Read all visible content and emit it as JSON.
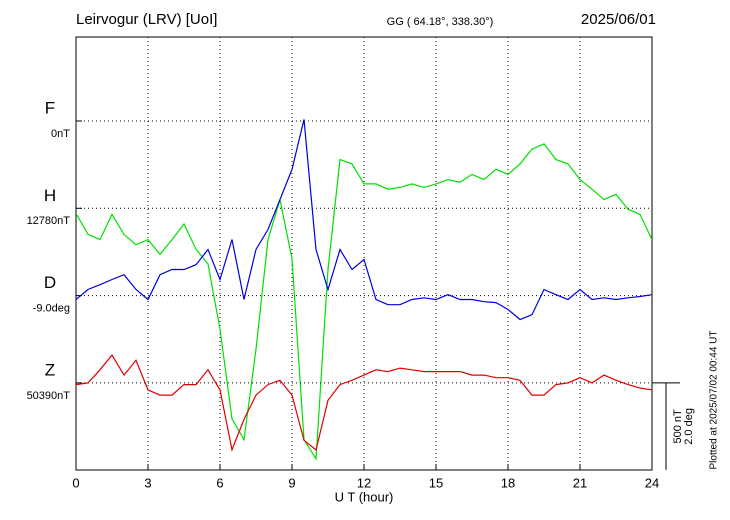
{
  "chart_data": {
    "type": "line",
    "title": "Leirvogur (LRV)  [UoI]",
    "subtitle": "GG ( 64.18°, 338.30°)",
    "date": "2025/06/01",
    "x_label": "U T (hour)",
    "footnote": "Plotted at 2025/07/02 00:44 UT",
    "xlim": [
      0,
      24
    ],
    "xticks": [
      0,
      3,
      6,
      9,
      12,
      15,
      18,
      21,
      24
    ],
    "grid": true,
    "scale": [
      {
        "value": 500,
        "label": "500 nT"
      },
      {
        "value": 2.0,
        "label": "2.0 deg"
      }
    ],
    "x": [
      0,
      0.5,
      1,
      1.5,
      2,
      2.5,
      3,
      3.5,
      4,
      4.5,
      5,
      5.5,
      6,
      6.5,
      7,
      7.5,
      8,
      8.5,
      9,
      9.5,
      10,
      10.5,
      11,
      11.5,
      12,
      12.5,
      13,
      13.5,
      14,
      14.5,
      15,
      15.5,
      16,
      16.5,
      17,
      17.5,
      18,
      18.5,
      19,
      19.5,
      20,
      20.5,
      21,
      21.5,
      22,
      22.5,
      23,
      23.5,
      24
    ],
    "series": [
      {
        "name": "F",
        "color": "#f5a500",
        "scale": 0,
        "baseline": {
          "value": 0,
          "label": "0nT"
        },
        "values": [
          null,
          null,
          null,
          null,
          null,
          null,
          null,
          null,
          null,
          null,
          null,
          null,
          null,
          null,
          null,
          null,
          null,
          null,
          null,
          null,
          null,
          null,
          null,
          null,
          null,
          null,
          null,
          null,
          null,
          null,
          null,
          null,
          null,
          null,
          null,
          null,
          null,
          null,
          null,
          null,
          null,
          null,
          null,
          null,
          null,
          null,
          null,
          null,
          null
        ]
      },
      {
        "name": "H",
        "color": "#00e000",
        "scale": 0,
        "baseline": {
          "value": 12780,
          "label": "12780nT"
        },
        "values": [
          12750,
          12630,
          12600,
          12745,
          12630,
          12570,
          12600,
          12515,
          12600,
          12690,
          12545,
          12460,
          12085,
          11570,
          11450,
          11970,
          12600,
          12830,
          12490,
          11450,
          11340,
          12430,
          13060,
          13035,
          12920,
          12920,
          12890,
          12900,
          12920,
          12900,
          12920,
          12945,
          12930,
          12975,
          12945,
          13005,
          12975,
          13035,
          13120,
          13150,
          13060,
          13035,
          12945,
          12890,
          12830,
          12860,
          12775,
          12745,
          12600
        ]
      },
      {
        "name": "D",
        "color": "#0000e0",
        "scale": 1,
        "baseline": {
          "value": -9.0,
          "label": "-9.0deg"
        },
        "values": [
          -9.09,
          -8.86,
          -8.75,
          -8.63,
          -8.52,
          -8.86,
          -9.09,
          -8.52,
          -8.4,
          -8.4,
          -8.29,
          -7.94,
          -8.63,
          -7.71,
          -9.09,
          -7.94,
          -7.48,
          -6.79,
          -6.1,
          -4.95,
          -7.94,
          -8.86,
          -7.94,
          -8.4,
          -8.17,
          -9.09,
          -9.21,
          -9.21,
          -9.09,
          -9.05,
          -9.09,
          -8.98,
          -9.09,
          -9.09,
          -9.14,
          -9.16,
          -9.32,
          -9.55,
          -9.44,
          -8.86,
          -8.98,
          -9.09,
          -8.86,
          -9.09,
          -9.05,
          -9.09,
          -9.05,
          -9.02,
          -8.98
        ]
      },
      {
        "name": "Z",
        "color": "#e00000",
        "scale": 0,
        "baseline": {
          "value": 50390,
          "label": "50390nT"
        },
        "values": [
          50380,
          50390,
          50465,
          50550,
          50435,
          50520,
          50350,
          50320,
          50320,
          50380,
          50380,
          50465,
          50350,
          50005,
          50180,
          50320,
          50380,
          50405,
          50320,
          50060,
          50005,
          50290,
          50380,
          50405,
          50435,
          50465,
          50455,
          50475,
          50465,
          50455,
          50455,
          50455,
          50455,
          50435,
          50435,
          50420,
          50420,
          50405,
          50320,
          50320,
          50380,
          50390,
          50420,
          50390,
          50435,
          50405,
          50380,
          50360,
          50350
        ]
      }
    ]
  }
}
